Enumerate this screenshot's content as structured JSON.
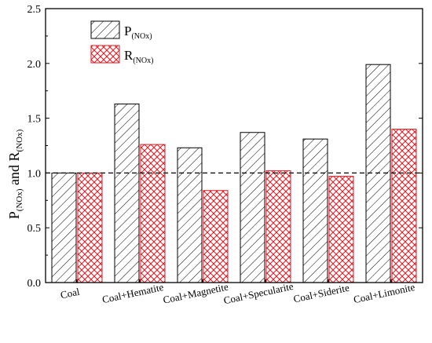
{
  "chart_data": {
    "type": "bar",
    "categories": [
      "Coal",
      "Coal+Hematite",
      "Coal+Magnetite",
      "Coal+Specularite",
      "Coal+Siderite",
      "Coal+Limonite"
    ],
    "series": [
      {
        "name": "P(NOx)",
        "name_main": "P",
        "name_sub": "(NOx)",
        "pattern": "diagonal-hatch",
        "color": "#000000",
        "values": [
          1.0,
          1.63,
          1.23,
          1.37,
          1.31,
          1.99
        ]
      },
      {
        "name": "R(NOx)",
        "name_main": "R",
        "name_sub": "(NOx)",
        "pattern": "cross-hatch",
        "color": "#e8141c",
        "values": [
          1.0,
          1.26,
          0.84,
          1.02,
          0.97,
          1.4
        ]
      }
    ],
    "ylabel": {
      "full": "P(NOx) and R(NOx)",
      "p_main": "P",
      "p_sub": "(NOx)",
      "and": " and ",
      "r_main": "R",
      "r_sub": "(NOx)"
    },
    "xlabel": "",
    "ylim": [
      0.0,
      2.5
    ],
    "yticks": [
      0.0,
      0.5,
      1.0,
      1.5,
      2.0,
      2.5
    ],
    "ytick_labels": [
      "0.0",
      "0.5",
      "1.0",
      "1.5",
      "2.0",
      "2.5"
    ],
    "reference_line": 1.0,
    "legend_position": "top-left",
    "grid": false
  }
}
